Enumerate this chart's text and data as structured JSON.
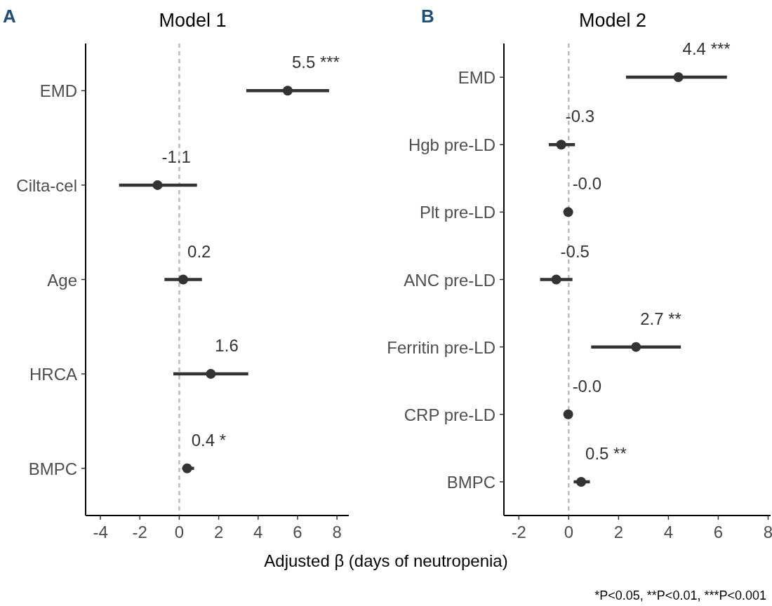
{
  "chart_data": [
    {
      "type": "scatter",
      "title": "Model 1",
      "xlabel": "Adjusted β (days of neutropenia)",
      "orientation": "horizontal",
      "marker": "circle",
      "grid": false,
      "categories": [
        "EMD",
        "Cilta-cel",
        "Age",
        "HRCA",
        "BMPC"
      ],
      "xlim": [
        -4.75,
        8.6
      ],
      "xticks": [
        -4,
        -2,
        0,
        2,
        4,
        6,
        8
      ],
      "series": [
        {
          "color": "#333333",
          "values": [
            5.5,
            -1.1,
            0.2,
            1.6,
            0.4
          ],
          "errors": [
            [
              3.4,
              7.6
            ],
            [
              -3.05,
              0.9
            ],
            [
              -0.75,
              1.15
            ],
            [
              -0.3,
              3.5
            ],
            [
              0.15,
              0.75
            ]
          ],
          "value_labels": [
            "5.5 ***",
            "-1.1",
            "0.2",
            "1.6",
            "0.4 *"
          ]
        }
      ],
      "ref_lines": [
        {
          "axis": "x",
          "value": 0,
          "color": "#bbbbbb",
          "line_style": "dashed"
        }
      ],
      "annotations": [
        "A"
      ]
    },
    {
      "type": "scatter",
      "title": "Model 2",
      "orientation": "horizontal",
      "marker": "circle",
      "grid": false,
      "categories": [
        "EMD",
        "Hgb pre-LD",
        "Plt pre-LD",
        "ANC pre-LD",
        "Ferritin pre-LD",
        "CRP pre-LD",
        "BMPC"
      ],
      "xlim": [
        -2.6,
        8.1
      ],
      "xticks": [
        -2,
        0,
        2,
        4,
        6,
        8
      ],
      "series": [
        {
          "color": "#333333",
          "values": [
            4.4,
            -0.3,
            -0.02,
            -0.5,
            2.7,
            -0.02,
            0.5
          ],
          "errors": [
            [
              2.3,
              6.35
            ],
            [
              -0.8,
              0.25
            ],
            [
              -0.1,
              0.05
            ],
            [
              -1.15,
              0.15
            ],
            [
              0.9,
              4.5
            ],
            [
              -0.1,
              0.05
            ],
            [
              0.2,
              0.85
            ]
          ],
          "value_labels": [
            "4.4 ***",
            "-0.3",
            "-0.0",
            "-0.5",
            "2.7 **",
            "-0.0",
            "0.5 **"
          ]
        }
      ],
      "ref_lines": [
        {
          "axis": "x",
          "value": 0,
          "color": "#bbbbbb",
          "line_style": "dashed"
        }
      ],
      "annotations": [
        "B",
        "*P<0.05, **P<0.01, ***P<0.001"
      ]
    }
  ]
}
